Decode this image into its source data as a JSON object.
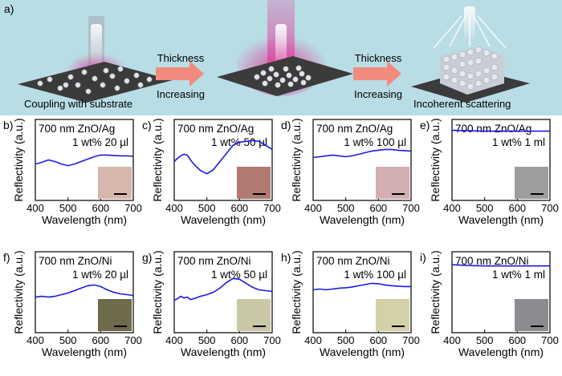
{
  "top": {
    "tag": "a)",
    "stage1": "Coupling with substrate",
    "stage3": "Incoherent scattering",
    "arrow1": {
      "top": "Thickness",
      "bottom": "Increasing"
    },
    "arrow2": {
      "top": "Thickness",
      "bottom": "Increasing"
    },
    "colors": {
      "banner": "#b9dde4",
      "arrow": "#f28b7d",
      "substrate": "#3b3b3b",
      "glow": "#e0399a"
    }
  },
  "chart_data": [
    {
      "type": "line",
      "tag": "b)",
      "material": "ZnO/Ag",
      "title_line1": "700 nm ZnO/Ag",
      "title_line2": "1 wt% 20 µl",
      "xlabel": "Wavelength (nm)",
      "ylabel": "Reflectivity (a.u.)",
      "xlim": [
        400,
        700
      ],
      "ylim": [
        0,
        1
      ],
      "xticks": [
        "400",
        "500",
        "600",
        "700"
      ],
      "inset_color": "#d9b6ad",
      "line_color": "#1a1ae6",
      "x": [
        400,
        420,
        440,
        460,
        480,
        500,
        520,
        540,
        560,
        580,
        600,
        620,
        640,
        660,
        680,
        700
      ],
      "y": [
        0.45,
        0.47,
        0.5,
        0.48,
        0.45,
        0.43,
        0.45,
        0.48,
        0.51,
        0.54,
        0.56,
        0.56,
        0.555,
        0.55,
        0.55,
        0.545
      ]
    },
    {
      "type": "line",
      "tag": "c)",
      "material": "ZnO/Ag",
      "title_line1": "700 nm ZnO/Ag",
      "title_line2": "1 wt% 50 µl",
      "xlabel": "Wavelength (nm)",
      "ylabel": "Reflectivity (a.u.)",
      "xlim": [
        400,
        700
      ],
      "ylim": [
        0,
        1
      ],
      "xticks": [
        "400",
        "500",
        "600",
        "700"
      ],
      "inset_color": "#b07a72",
      "line_color": "#1a1ae6",
      "x": [
        400,
        410,
        420,
        430,
        440,
        450,
        460,
        480,
        500,
        520,
        540,
        560,
        580,
        600,
        620,
        640,
        660,
        680,
        700
      ],
      "y": [
        0.48,
        0.52,
        0.55,
        0.57,
        0.56,
        0.5,
        0.45,
        0.37,
        0.33,
        0.38,
        0.48,
        0.58,
        0.68,
        0.72,
        0.73,
        0.74,
        0.73,
        0.68,
        0.63
      ]
    },
    {
      "type": "line",
      "tag": "d)",
      "material": "ZnO/Ag",
      "title_line1": "700 nm ZnO/Ag",
      "title_line2": "1 wt% 100 µl",
      "xlabel": "Wavelength (nm)",
      "ylabel": "Reflectivity (a.u.)",
      "xlim": [
        400,
        700
      ],
      "ylim": [
        0,
        1
      ],
      "xticks": [
        "400",
        "500",
        "600",
        "700"
      ],
      "inset_color": "#d3aeb2",
      "line_color": "#1a1ae6",
      "x": [
        400,
        420,
        440,
        460,
        480,
        500,
        520,
        540,
        560,
        580,
        600,
        620,
        640,
        660,
        680,
        700
      ],
      "y": [
        0.53,
        0.54,
        0.55,
        0.56,
        0.55,
        0.54,
        0.55,
        0.57,
        0.59,
        0.61,
        0.62,
        0.63,
        0.63,
        0.62,
        0.615,
        0.61
      ]
    },
    {
      "type": "line",
      "tag": "e)",
      "material": "ZnO/Ag",
      "title_line1": "700 nm ZnO/Ag",
      "title_line2": "1 wt% 1 ml",
      "xlabel": "Wavelength (nm)",
      "ylabel": "Reflectivity (a.u.)",
      "xlim": [
        400,
        700
      ],
      "ylim": [
        0,
        1
      ],
      "xticks": [
        "400",
        "500",
        "600",
        "700"
      ],
      "inset_color": "#9d9d9f",
      "line_color": "#1a1ae6",
      "x": [
        400,
        450,
        500,
        550,
        600,
        650,
        700
      ],
      "y": [
        0.865,
        0.86,
        0.855,
        0.855,
        0.855,
        0.855,
        0.855
      ]
    },
    {
      "type": "line",
      "tag": "f)",
      "material": "ZnO/Ni",
      "title_line1": "700 nm ZnO/Ni",
      "title_line2": "1 wt% 20 µl",
      "xlabel": "Wavelength (nm)",
      "ylabel": "Reflectivity (a.u.)",
      "xlim": [
        400,
        700
      ],
      "ylim": [
        0,
        1
      ],
      "xticks": [
        "400",
        "500",
        "600",
        "700"
      ],
      "inset_color": "#6e6a4c",
      "line_color": "#1a1ae6",
      "x": [
        400,
        420,
        440,
        460,
        480,
        500,
        520,
        540,
        560,
        580,
        600,
        620,
        640,
        660,
        680,
        700
      ],
      "y": [
        0.44,
        0.45,
        0.44,
        0.45,
        0.47,
        0.49,
        0.52,
        0.55,
        0.58,
        0.59,
        0.57,
        0.53,
        0.5,
        0.48,
        0.47,
        0.46
      ]
    },
    {
      "type": "line",
      "tag": "g)",
      "material": "ZnO/Ni",
      "title_line1": "700 nm ZnO/Ni",
      "title_line2": "1 wt% 50 µl",
      "xlabel": "Wavelength (nm)",
      "ylabel": "Reflectivity (a.u.)",
      "xlim": [
        400,
        700
      ],
      "ylim": [
        0,
        1
      ],
      "xticks": [
        "400",
        "500",
        "600",
        "700"
      ],
      "inset_color": "#c9c7a6",
      "line_color": "#1a1ae6",
      "x": [
        400,
        410,
        420,
        430,
        440,
        450,
        460,
        480,
        500,
        520,
        540,
        560,
        580,
        600,
        620,
        640,
        660,
        680,
        700
      ],
      "y": [
        0.4,
        0.42,
        0.45,
        0.43,
        0.44,
        0.41,
        0.42,
        0.45,
        0.47,
        0.5,
        0.55,
        0.62,
        0.67,
        0.66,
        0.61,
        0.56,
        0.53,
        0.52,
        0.51
      ]
    },
    {
      "type": "line",
      "tag": "h)",
      "material": "ZnO/Ni",
      "title_line1": "700 nm ZnO/Ni",
      "title_line2": "1 wt% 100 µl",
      "xlabel": "Wavelength (nm)",
      "ylabel": "Reflectivity (a.u.)",
      "xlim": [
        400,
        700
      ],
      "ylim": [
        0,
        1
      ],
      "xticks": [
        "400",
        "500",
        "600",
        "700"
      ],
      "inset_color": "#d4d1a8",
      "line_color": "#1a1ae6",
      "x": [
        400,
        420,
        440,
        460,
        480,
        500,
        520,
        540,
        560,
        580,
        600,
        620,
        640,
        660,
        680,
        700
      ],
      "y": [
        0.53,
        0.54,
        0.53,
        0.54,
        0.55,
        0.555,
        0.565,
        0.58,
        0.595,
        0.61,
        0.605,
        0.59,
        0.58,
        0.575,
        0.57,
        0.57
      ]
    },
    {
      "type": "line",
      "tag": "i)",
      "material": "ZnO/Ni",
      "title_line1": "700 nm ZnO/Ni",
      "title_line2": "1 wt% 1 ml",
      "xlabel": "Wavelength (nm)",
      "ylabel": "Reflectivity (a.u.)",
      "xlim": [
        400,
        700
      ],
      "ylim": [
        0,
        1
      ],
      "xticks": [
        "400",
        "500",
        "600",
        "700"
      ],
      "inset_color": "#8c8b90",
      "line_color": "#1a1ae6",
      "x": [
        400,
        450,
        500,
        550,
        600,
        650,
        700
      ],
      "y": [
        0.84,
        0.83,
        0.825,
        0.825,
        0.825,
        0.825,
        0.825
      ]
    }
  ]
}
